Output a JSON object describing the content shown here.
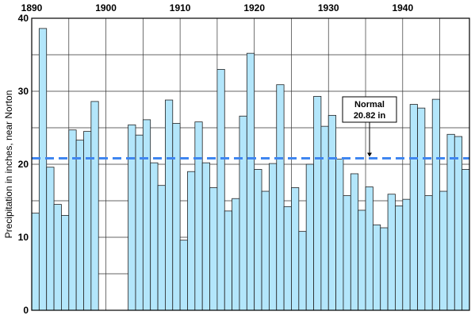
{
  "chart_data": {
    "type": "bar",
    "ylabel": "Precipitation in inches, near Norton",
    "xlim": [
      1890,
      1949
    ],
    "ylim": [
      0,
      40
    ],
    "x_ticks": [
      1890,
      1900,
      1910,
      1920,
      1930,
      1940
    ],
    "y_ticks": [
      0,
      10,
      20,
      30,
      40
    ],
    "grid": true,
    "colors": {
      "bar_fill": "#b3e6fb",
      "bar_stroke": "#222222",
      "reference_line": "#3f86f0",
      "grid": "#333333"
    },
    "years": [
      1890,
      1891,
      1892,
      1893,
      1894,
      1895,
      1896,
      1897,
      1898,
      1899,
      1900,
      1901,
      1902,
      1903,
      1904,
      1905,
      1906,
      1907,
      1908,
      1909,
      1910,
      1911,
      1912,
      1913,
      1914,
      1915,
      1916,
      1917,
      1918,
      1919,
      1920,
      1921,
      1922,
      1923,
      1924,
      1925,
      1926,
      1927,
      1928,
      1929,
      1930,
      1931,
      1932,
      1933,
      1934,
      1935,
      1936,
      1937,
      1938,
      1939,
      1940,
      1941,
      1942,
      1943,
      1944,
      1945,
      1946,
      1947,
      1948
    ],
    "values": [
      13.3,
      38.6,
      19.6,
      14.5,
      13.0,
      24.7,
      23.3,
      24.5,
      28.6,
      null,
      null,
      null,
      null,
      25.4,
      24.0,
      26.1,
      20.2,
      17.1,
      28.8,
      25.6,
      9.6,
      19.0,
      25.8,
      20.2,
      16.8,
      33.0,
      13.6,
      15.3,
      26.6,
      35.2,
      19.3,
      16.3,
      20.1,
      30.9,
      14.2,
      16.8,
      10.8,
      20.0,
      29.3,
      25.2,
      26.7,
      20.7,
      15.7,
      18.7,
      13.7,
      16.9,
      11.7,
      11.3,
      15.9,
      14.3,
      15.2,
      28.2,
      27.7,
      15.7,
      28.9,
      16.3,
      24.1,
      23.8,
      19.3
    ],
    "reference_line": {
      "value": 20.82,
      "label_line1": "Normal",
      "label_line2": "20.82 in"
    }
  }
}
